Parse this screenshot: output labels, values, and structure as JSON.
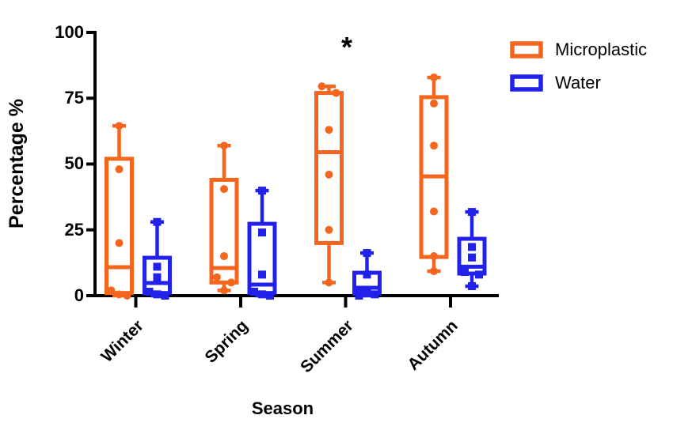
{
  "chart_data": {
    "type": "boxplot",
    "title": "",
    "xlabel": "Season",
    "ylabel": "Percentage %",
    "ylim": [
      0,
      100
    ],
    "yticks": [
      100,
      75,
      50,
      25,
      0
    ],
    "categories": [
      "Winter",
      "Spring",
      "Summer",
      "Autumn"
    ],
    "grid": "off",
    "whisker_style": "min-to-max, all points shown",
    "annotation": {
      "text": "*",
      "above_category": "Summer",
      "meaning": "significance marker"
    },
    "legend": {
      "position": "top-right",
      "entries": [
        "Microplastic",
        "Water"
      ]
    },
    "colors": {
      "microplastic": "#F4661E",
      "water": "#2121EB",
      "axis": "#000000",
      "background": "#FFFFFF"
    },
    "series": [
      {
        "name": "Microplastic",
        "color": "#F4661E",
        "marker": "circle",
        "boxes": [
          {
            "category": "Winter",
            "min": 0,
            "q1": 1,
            "median": 10.8,
            "q3": 52,
            "max": 64.5,
            "points": [
              64.5,
              48,
              20,
              2,
              0.5,
              0
            ]
          },
          {
            "category": "Spring",
            "min": 2,
            "q1": 5,
            "median": 10.5,
            "q3": 44,
            "max": 57,
            "points": [
              57,
              40.5,
              15,
              7,
              5,
              2
            ]
          },
          {
            "category": "Summer",
            "min": 5,
            "q1": 20,
            "median": 54.5,
            "q3": 77,
            "max": 79.5,
            "points": [
              79.5,
              77,
              63,
              46,
              25,
              5
            ]
          },
          {
            "category": "Autumn",
            "min": 9.3,
            "q1": 14.7,
            "median": 45.3,
            "q3": 75.4,
            "max": 82.9,
            "points": [
              82.9,
              73,
              57,
              32,
              15,
              9.3
            ]
          }
        ]
      },
      {
        "name": "Water",
        "color": "#2121EB",
        "marker": "square",
        "boxes": [
          {
            "category": "Winter",
            "min": 0,
            "q1": 1,
            "median": 4.8,
            "q3": 14.4,
            "max": 28,
            "points": [
              28,
              11,
              7,
              1.5,
              0.5,
              0
            ]
          },
          {
            "category": "Spring",
            "min": 0,
            "q1": 1,
            "median": 4.2,
            "q3": 27.3,
            "max": 39.9,
            "points": [
              39.9,
              24,
              8,
              1.5,
              0.5,
              0
            ]
          },
          {
            "category": "Summer",
            "min": 0,
            "q1": 0.8,
            "median": 3,
            "q3": 8.7,
            "max": 16.2,
            "points": [
              16.2,
              8,
              2,
              1,
              0.5,
              0
            ]
          },
          {
            "category": "Autumn",
            "min": 3.6,
            "q1": 8.4,
            "median": 11,
            "q3": 21.6,
            "max": 31.8,
            "points": [
              31.8,
              18.5,
              14.5,
              9,
              8,
              3.6
            ]
          }
        ]
      }
    ]
  }
}
